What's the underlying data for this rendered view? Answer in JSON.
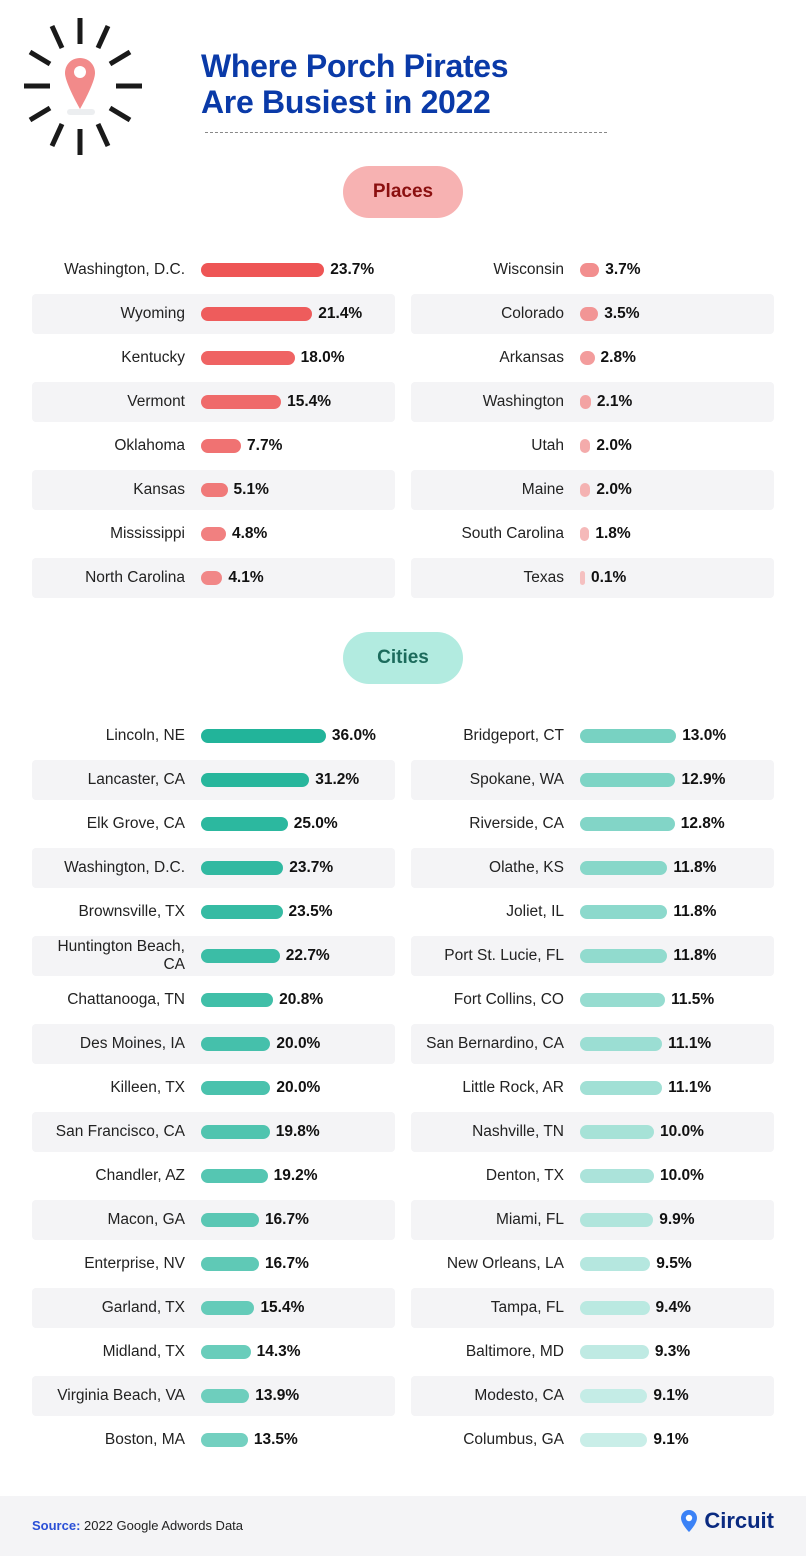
{
  "title_line1": "Where Porch Pirates",
  "title_line2": "Are Busiest in 2022",
  "chart_data": [
    {
      "type": "bar",
      "orientation": "horizontal",
      "title": "Places",
      "unit": "%",
      "colors": {
        "high": "#ee5555",
        "low": "#f5c0c0",
        "pill": "#f7b2b2",
        "pill_text": "#8b1010"
      },
      "columns": [
        {
          "categories": [
            "Washington, D.C.",
            "Wyoming",
            "Kentucky",
            "Vermont",
            "Oklahoma",
            "Kansas",
            "Mississippi",
            "North Carolina"
          ],
          "values": [
            23.7,
            21.4,
            18.0,
            15.4,
            7.7,
            5.1,
            4.8,
            4.1
          ],
          "labels": [
            "23.7%",
            "21.4%",
            "18.0%",
            "15.4%",
            "7.7%",
            "5.1%",
            "4.8%",
            "4.1%"
          ]
        },
        {
          "categories": [
            "Wisconsin",
            "Colorado",
            "Arkansas",
            "Washington",
            "Utah",
            "Maine",
            "South Carolina",
            "Texas"
          ],
          "values": [
            3.7,
            3.5,
            2.8,
            2.1,
            2.0,
            2.0,
            1.8,
            0.1
          ],
          "labels": [
            "3.7%",
            "3.5%",
            "2.8%",
            "2.1%",
            "2.0%",
            "2.0%",
            "1.8%",
            "0.1%"
          ]
        }
      ]
    },
    {
      "type": "bar",
      "orientation": "horizontal",
      "title": "Cities",
      "unit": "%",
      "colors": {
        "high": "#22b49a",
        "low": "#c9eee8",
        "pill": "#b2ebe0",
        "pill_text": "#1c6b5c"
      },
      "columns": [
        {
          "categories": [
            "Lincoln, NE",
            "Lancaster, CA",
            "Elk Grove, CA",
            "Washington, D.C.",
            "Brownsville, TX",
            "Huntington Beach, CA",
            "Chattanooga, TN",
            "Des Moines, IA",
            "Killeen, TX",
            "San Francisco, CA",
            "Chandler, AZ",
            "Macon, GA",
            "Enterprise, NV",
            "Garland, TX",
            "Midland, TX",
            "Virginia Beach, VA",
            "Boston, MA"
          ],
          "values": [
            36.0,
            31.2,
            25.0,
            23.7,
            23.5,
            22.7,
            20.8,
            20.0,
            20.0,
            19.8,
            19.2,
            16.7,
            16.7,
            15.4,
            14.3,
            13.9,
            13.5
          ],
          "labels": [
            "36.0%",
            "31.2%",
            "25.0%",
            "23.7%",
            "23.5%",
            "22.7%",
            "20.8%",
            "20.0%",
            "20.0%",
            "19.8%",
            "19.2%",
            "16.7%",
            "16.7%",
            "15.4%",
            "14.3%",
            "13.9%",
            "13.5%"
          ]
        },
        {
          "categories": [
            "Bridgeport, CT",
            "Spokane, WA",
            "Riverside, CA",
            "Olathe, KS",
            "Joliet, IL",
            "Port St. Lucie, FL",
            "Fort Collins, CO",
            "San Bernardino, CA",
            "Little Rock, AR",
            "Nashville, TN",
            "Denton, TX",
            "Miami, FL",
            "New Orleans, LA",
            "Tampa, FL",
            "Baltimore, MD",
            "Modesto, CA",
            "Columbus, GA"
          ],
          "values": [
            13.0,
            12.9,
            12.8,
            11.8,
            11.8,
            11.8,
            11.5,
            11.1,
            11.1,
            10.0,
            10.0,
            9.9,
            9.5,
            9.4,
            9.3,
            9.1,
            9.1
          ],
          "labels": [
            "13.0%",
            "12.9%",
            "12.8%",
            "11.8%",
            "11.8%",
            "11.8%",
            "11.5%",
            "11.1%",
            "11.1%",
            "10.0%",
            "10.0%",
            "9.9%",
            "9.5%",
            "9.4%",
            "9.3%",
            "9.1%",
            "9.1%"
          ]
        }
      ]
    }
  ],
  "footer": {
    "source_label": "Source:",
    "source_text": " 2022 Google Adwords Data",
    "brand": "Circuit"
  },
  "icons": {
    "header": "map-pin-burst-icon",
    "brand": "map-pin-icon"
  }
}
